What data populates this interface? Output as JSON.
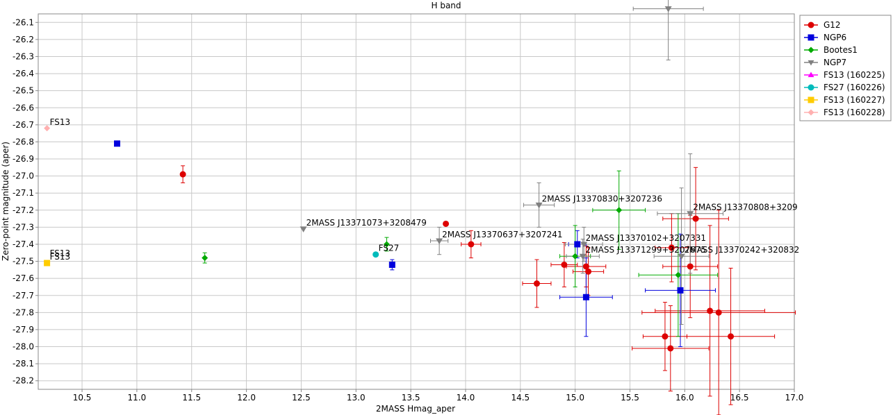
{
  "chart_data": {
    "type": "scatter",
    "title": "H band",
    "xlabel": "2MASS Hmag_aper",
    "ylabel": "Zero-point magnitude (aper)",
    "xlim": [
      10.1,
      17.0
    ],
    "ylim": [
      -28.25,
      -26.05
    ],
    "y_axis_inverted": true,
    "xticks": [
      "10.5",
      "11.0",
      "11.5",
      "12.0",
      "12.5",
      "13.0",
      "13.5",
      "14.0",
      "14.5",
      "15.0",
      "15.5",
      "16.0",
      "16.5",
      "17.0"
    ],
    "yticks": [
      "-26.1",
      "-26.2",
      "-26.3",
      "-26.4",
      "-26.5",
      "-26.6",
      "-26.7",
      "-26.8",
      "-26.9",
      "-27.0",
      "-27.1",
      "-27.2",
      "-27.3",
      "-27.4",
      "-27.5",
      "-27.6",
      "-27.7",
      "-27.8",
      "-27.9",
      "-28.0",
      "-28.1",
      "-28.2"
    ],
    "grid": true,
    "legend_position": "right",
    "series": [
      {
        "name": "G12",
        "color": "#dd0000",
        "marker": "circle",
        "points": [
          {
            "x": 11.42,
            "y": -26.99,
            "yerr": 0.05
          },
          {
            "x": 13.82,
            "y": -27.28
          },
          {
            "x": 14.05,
            "y": -27.4,
            "xerr": 0.09,
            "yerr": 0.08
          },
          {
            "x": 14.65,
            "y": -27.63,
            "xerr": 0.13,
            "yerr": 0.14
          },
          {
            "x": 14.9,
            "y": -27.52,
            "xerr": 0.12,
            "yerr": 0.13
          },
          {
            "x": 15.1,
            "y": -27.53,
            "xerr": 0.18,
            "yerr": 0.12
          },
          {
            "x": 15.12,
            "y": -27.56,
            "xerr": 0.14,
            "yerr": 0.14
          },
          {
            "x": 15.82,
            "y": -27.94,
            "xerr": 0.2,
            "yerr": 0.2
          },
          {
            "x": 15.87,
            "y": -28.01,
            "xerr": 0.35,
            "yerr": 0.25
          },
          {
            "x": 15.88,
            "y": -27.42,
            "xerr": 0.15,
            "yerr": 0.2
          },
          {
            "x": 16.05,
            "y": -27.53,
            "xerr": 0.25,
            "yerr": 0.3
          },
          {
            "x": 16.1,
            "y": -27.25,
            "xerr": 0.3,
            "yerr": 0.3
          },
          {
            "x": 16.23,
            "y": -27.79,
            "xerr": 0.5,
            "yerr": 0.5
          },
          {
            "x": 16.31,
            "y": -27.8,
            "xerr": 0.7,
            "yerr": 0.6
          },
          {
            "x": 16.42,
            "y": -27.94,
            "xerr": 0.4,
            "yerr": 0.4
          }
        ]
      },
      {
        "name": "NGP6",
        "color": "#0000dd",
        "marker": "square",
        "points": [
          {
            "x": 10.82,
            "y": -26.81
          },
          {
            "x": 13.33,
            "y": -27.52,
            "yerr": 0.03
          },
          {
            "x": 15.02,
            "y": -27.4,
            "xerr": 0.08,
            "yerr": 0.08
          },
          {
            "x": 15.1,
            "y": -27.71,
            "xerr": 0.24,
            "yerr": 0.23
          },
          {
            "x": 15.96,
            "y": -27.67,
            "xerr": 0.32,
            "yerr": 0.33
          }
        ]
      },
      {
        "name": "Bootes1",
        "color": "#00aa00",
        "marker": "diamond",
        "points": [
          {
            "x": 11.62,
            "y": -27.48,
            "yerr": 0.03
          },
          {
            "x": 13.28,
            "y": -27.4,
            "yerr": 0.04
          },
          {
            "x": 15.0,
            "y": -27.47,
            "xerr": 0.14,
            "yerr": 0.18
          },
          {
            "x": 15.4,
            "y": -27.2,
            "xerr": 0.24,
            "yerr": 0.23
          },
          {
            "x": 15.94,
            "y": -27.58,
            "xerr": 0.36,
            "yerr": 0.36
          }
        ]
      },
      {
        "name": "NGP7",
        "color": "#808080",
        "marker": "triangle-down",
        "points": [
          {
            "x": 15.85,
            "y": -26.02,
            "xerr": 0.32,
            "yerr": 0.3
          },
          {
            "x": 12.52,
            "y": -27.31
          },
          {
            "x": 13.76,
            "y": -27.38,
            "xerr": 0.08,
            "yerr": 0.08
          },
          {
            "x": 14.67,
            "y": -27.17,
            "xerr": 0.14,
            "yerr": 0.13
          },
          {
            "x": 15.07,
            "y": -27.47,
            "xerr": 0.15,
            "yerr": 0.1
          },
          {
            "x": 15.08,
            "y": -27.4,
            "xerr": 0.17,
            "yerr": 0.1
          },
          {
            "x": 15.97,
            "y": -27.47,
            "xerr": 0.25,
            "yerr": 0.4
          },
          {
            "x": 16.05,
            "y": -27.22,
            "xerr": 0.3,
            "yerr": 0.35
          }
        ]
      },
      {
        "name": "FS13 (160225)",
        "color": "#ff00ff",
        "marker": "triangle-up",
        "points": []
      },
      {
        "name": "FS27 (160226)",
        "color": "#00bbbb",
        "marker": "circle",
        "points": [
          {
            "x": 13.18,
            "y": -27.46
          }
        ]
      },
      {
        "name": "FS13 (160227)",
        "color": "#ffcc00",
        "marker": "square",
        "points": [
          {
            "x": 10.18,
            "y": -27.51
          }
        ]
      },
      {
        "name": "FS13 (160228)",
        "color": "#ffb0b0",
        "marker": "diamond",
        "points": [
          {
            "x": 10.18,
            "y": -26.72
          }
        ]
      }
    ],
    "annotations": [
      {
        "text": "FS13",
        "x": 10.18,
        "y": -26.72
      },
      {
        "text": "FS13",
        "x": 10.18,
        "y": -27.49
      },
      {
        "text": "FS13",
        "x": 10.18,
        "y": -27.51
      },
      {
        "text": "FS27",
        "x": 13.18,
        "y": -27.46
      },
      {
        "text": "2MASS J13371073+3208479",
        "x": 12.52,
        "y": -27.31
      },
      {
        "text": "2MASS J13370637+3207241",
        "x": 13.76,
        "y": -27.38
      },
      {
        "text": "2MASS J13370830+3207236",
        "x": 14.67,
        "y": -27.17
      },
      {
        "text": "2MASS J13370808+3209",
        "x": 16.05,
        "y": -27.22
      },
      {
        "text": "2MASS J13370102+3207331",
        "x": 15.07,
        "y": -27.4
      },
      {
        "text": "2MASS J13371299+3207675",
        "x": 15.07,
        "y": -27.47
      },
      {
        "text": "2MASS J13370242+320832",
        "x": 15.97,
        "y": -27.47
      }
    ]
  }
}
